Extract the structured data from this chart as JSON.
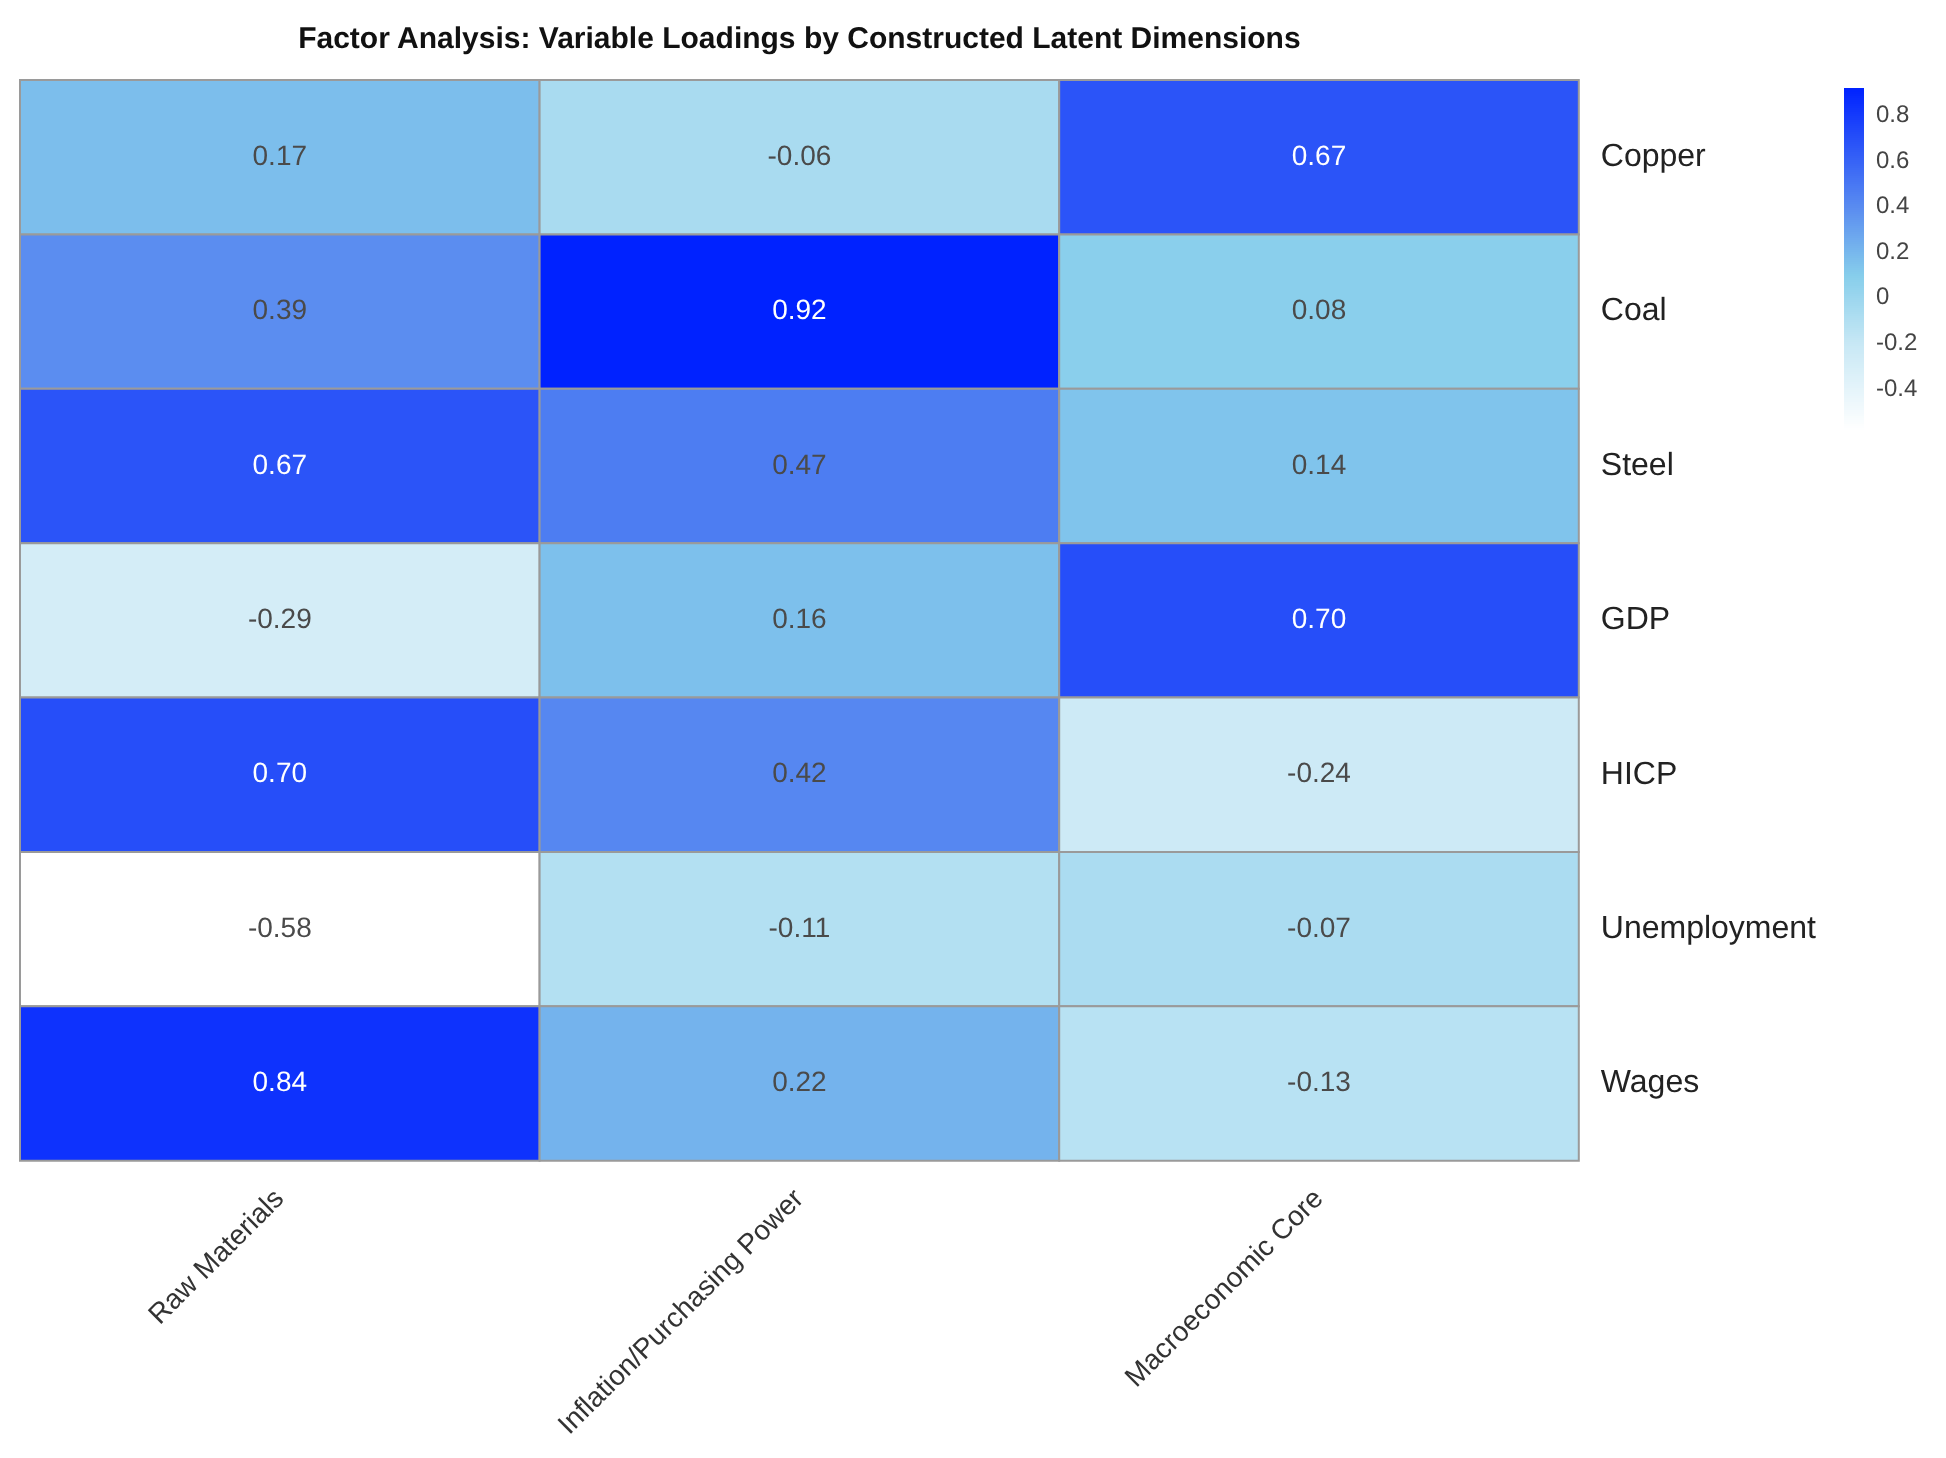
{
  "chart_data": {
    "type": "heatmap",
    "title": "Factor Analysis: Variable Loadings by Constructed Latent Dimensions",
    "categories": [
      "Raw Materials",
      "Inflation/Purchasing Power",
      "Macroeconomic Core"
    ],
    "y_categories": [
      "Copper",
      "Coal",
      "Steel",
      "GDP",
      "HICP",
      "Unemployment",
      "Wages"
    ],
    "cells": [
      [
        0.17,
        -0.06,
        0.67
      ],
      [
        0.39,
        0.92,
        0.08
      ],
      [
        0.67,
        0.47,
        0.14
      ],
      [
        -0.29,
        0.16,
        0.7
      ],
      [
        0.7,
        0.42,
        -0.24
      ],
      [
        -0.58,
        -0.11,
        -0.07
      ],
      [
        0.84,
        0.22,
        -0.13
      ]
    ],
    "cell_labels": [
      [
        "0.17",
        "-0.06",
        "0.67"
      ],
      [
        "0.39",
        "0.92",
        "0.08"
      ],
      [
        "0.67",
        "0.47",
        "0.14"
      ],
      [
        "-0.29",
        "0.16",
        "0.70"
      ],
      [
        "0.70",
        "0.42",
        "-0.24"
      ],
      [
        "-0.58",
        "-0.11",
        "-0.07"
      ],
      [
        "0.84",
        "0.22",
        "-0.13"
      ]
    ],
    "clim": [
      -0.58,
      0.92
    ],
    "cticks": [
      0.8,
      0.6,
      0.4,
      0.2,
      0,
      -0.2,
      -0.4
    ]
  }
}
